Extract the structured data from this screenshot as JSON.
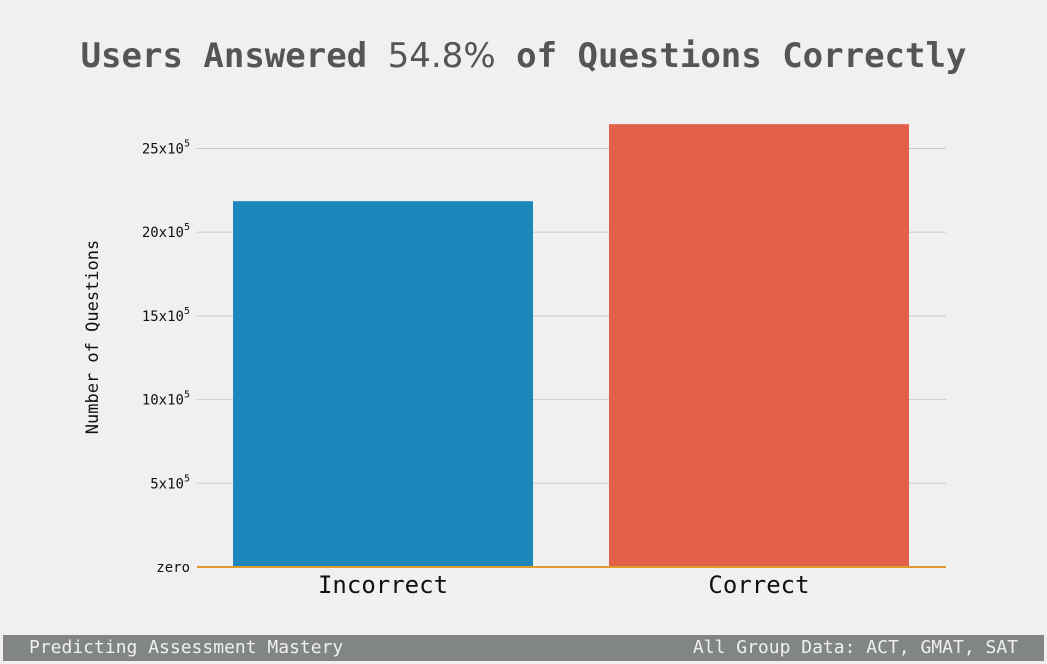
{
  "title": {
    "part1": "Users Answered ",
    "highlight": "54.8%",
    "part2": " of Questions Correctly"
  },
  "footer": {
    "left": "Predicting Assessment Mastery",
    "right": "All Group Data: ACT, GMAT, SAT"
  },
  "colors": {
    "background": "#f0f0f0",
    "incorrect": "#1c87ba",
    "correct": "#e36049",
    "baseline": "#e09b2d",
    "grid": "#cbcbcb",
    "footer_bg": "#818583"
  },
  "chart_data": {
    "type": "bar",
    "categories": [
      "Incorrect",
      "Correct"
    ],
    "values": [
      2185000,
      2645000
    ],
    "ylabel": "Number of Questions",
    "xlabel": "",
    "ylim": [
      0,
      2640000
    ],
    "yticks": [
      {
        "value": 0,
        "base": "zero",
        "exp": ""
      },
      {
        "value": 500000,
        "base": "5x10",
        "exp": "5"
      },
      {
        "value": 1000000,
        "base": "10x10",
        "exp": "5"
      },
      {
        "value": 1500000,
        "base": "15x10",
        "exp": "5"
      },
      {
        "value": 2000000,
        "base": "20x10",
        "exp": "5"
      },
      {
        "value": 2500000,
        "base": "25x10",
        "exp": "5"
      }
    ],
    "grid": true,
    "legend": "none"
  }
}
